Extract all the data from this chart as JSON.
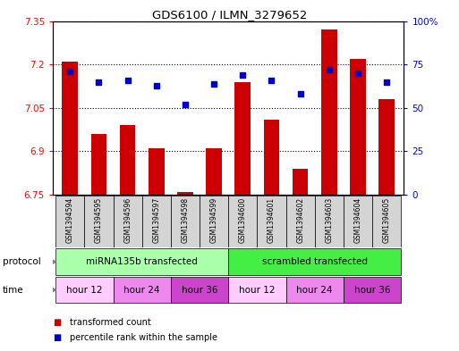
{
  "title": "GDS6100 / ILMN_3279652",
  "samples": [
    "GSM1394594",
    "GSM1394595",
    "GSM1394596",
    "GSM1394597",
    "GSM1394598",
    "GSM1394599",
    "GSM1394600",
    "GSM1394601",
    "GSM1394602",
    "GSM1394603",
    "GSM1394604",
    "GSM1394605"
  ],
  "bar_values": [
    7.21,
    6.96,
    6.99,
    6.91,
    6.76,
    6.91,
    7.14,
    7.01,
    6.84,
    7.32,
    7.22,
    7.08
  ],
  "dot_values": [
    71,
    65,
    66,
    63,
    52,
    64,
    69,
    66,
    58,
    72,
    70,
    65
  ],
  "ylim_left": [
    6.75,
    7.35
  ],
  "ylim_right": [
    0,
    100
  ],
  "yticks_left": [
    6.75,
    6.9,
    7.05,
    7.2,
    7.35
  ],
  "yticks_right": [
    0,
    25,
    50,
    75,
    100
  ],
  "ytick_labels_left": [
    "6.75",
    "6.9",
    "7.05",
    "7.2",
    "7.35"
  ],
  "ytick_labels_right": [
    "0",
    "25",
    "50",
    "75",
    "100%"
  ],
  "bar_color": "#cc0000",
  "dot_color": "#0000cc",
  "bar_bottom": 6.75,
  "protocol_groups": [
    {
      "label": "miRNA135b transfected",
      "start": 0,
      "end": 5,
      "color": "#aaffaa"
    },
    {
      "label": "scrambled transfected",
      "start": 6,
      "end": 11,
      "color": "#44ee44"
    }
  ],
  "time_groups": [
    {
      "label": "hour 12",
      "start": 0,
      "end": 1,
      "color": "#ffccff"
    },
    {
      "label": "hour 24",
      "start": 2,
      "end": 3,
      "color": "#ee88ee"
    },
    {
      "label": "hour 36",
      "start": 4,
      "end": 5,
      "color": "#cc44cc"
    },
    {
      "label": "hour 12",
      "start": 6,
      "end": 7,
      "color": "#ffccff"
    },
    {
      "label": "hour 24",
      "start": 8,
      "end": 9,
      "color": "#ee88ee"
    },
    {
      "label": "hour 36",
      "start": 10,
      "end": 11,
      "color": "#cc44cc"
    }
  ],
  "legend_bar_label": "transformed count",
  "legend_dot_label": "percentile rank within the sample",
  "protocol_label": "protocol",
  "time_label": "time",
  "background_color": "#ffffff",
  "plot_bg_color": "#ffffff",
  "sample_bg_color": "#d4d4d4",
  "xlim": [
    -0.6,
    11.6
  ]
}
